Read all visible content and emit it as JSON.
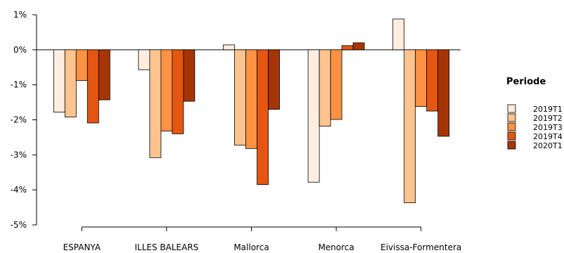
{
  "chart_data": {
    "type": "bar",
    "title": "",
    "xlabel": "",
    "ylabel": "",
    "ylim": [
      -5,
      1
    ],
    "y_ticks": [
      1,
      0,
      -1,
      -2,
      -3,
      -4,
      -5
    ],
    "y_tick_labels": [
      "1%",
      "0%",
      "-1%",
      "-2%",
      "-3%",
      "-4%",
      "-5%"
    ],
    "grid": false,
    "legend_position": "right",
    "categories": [
      "ESPANYA",
      "ILLES BALEARS",
      "Mallorca",
      "Menorca",
      "Eivissa-Formentera"
    ],
    "series": [
      {
        "name": "2019T1",
        "color": "#feede0",
        "values": [
          -1.78,
          -0.57,
          0.14,
          -3.78,
          0.88
        ]
      },
      {
        "name": "2019T2",
        "color": "#fdc48f",
        "values": [
          -1.92,
          -3.08,
          -2.72,
          -2.18,
          -4.37
        ]
      },
      {
        "name": "2019T3",
        "color": "#fd9244",
        "values": [
          -0.88,
          -2.32,
          -2.82,
          -1.99,
          -1.62
        ]
      },
      {
        "name": "2019T4",
        "color": "#e45612",
        "values": [
          -2.09,
          -2.4,
          -3.85,
          0.12,
          -1.75
        ]
      },
      {
        "name": "2020T1",
        "color": "#a63506",
        "values": [
          -1.43,
          -1.47,
          -1.7,
          0.2,
          -2.47
        ]
      }
    ],
    "legend": {
      "title": "Periode",
      "entries": [
        "2019T1",
        "2019T2",
        "2019T3",
        "2019T4",
        "2020T1"
      ]
    }
  }
}
